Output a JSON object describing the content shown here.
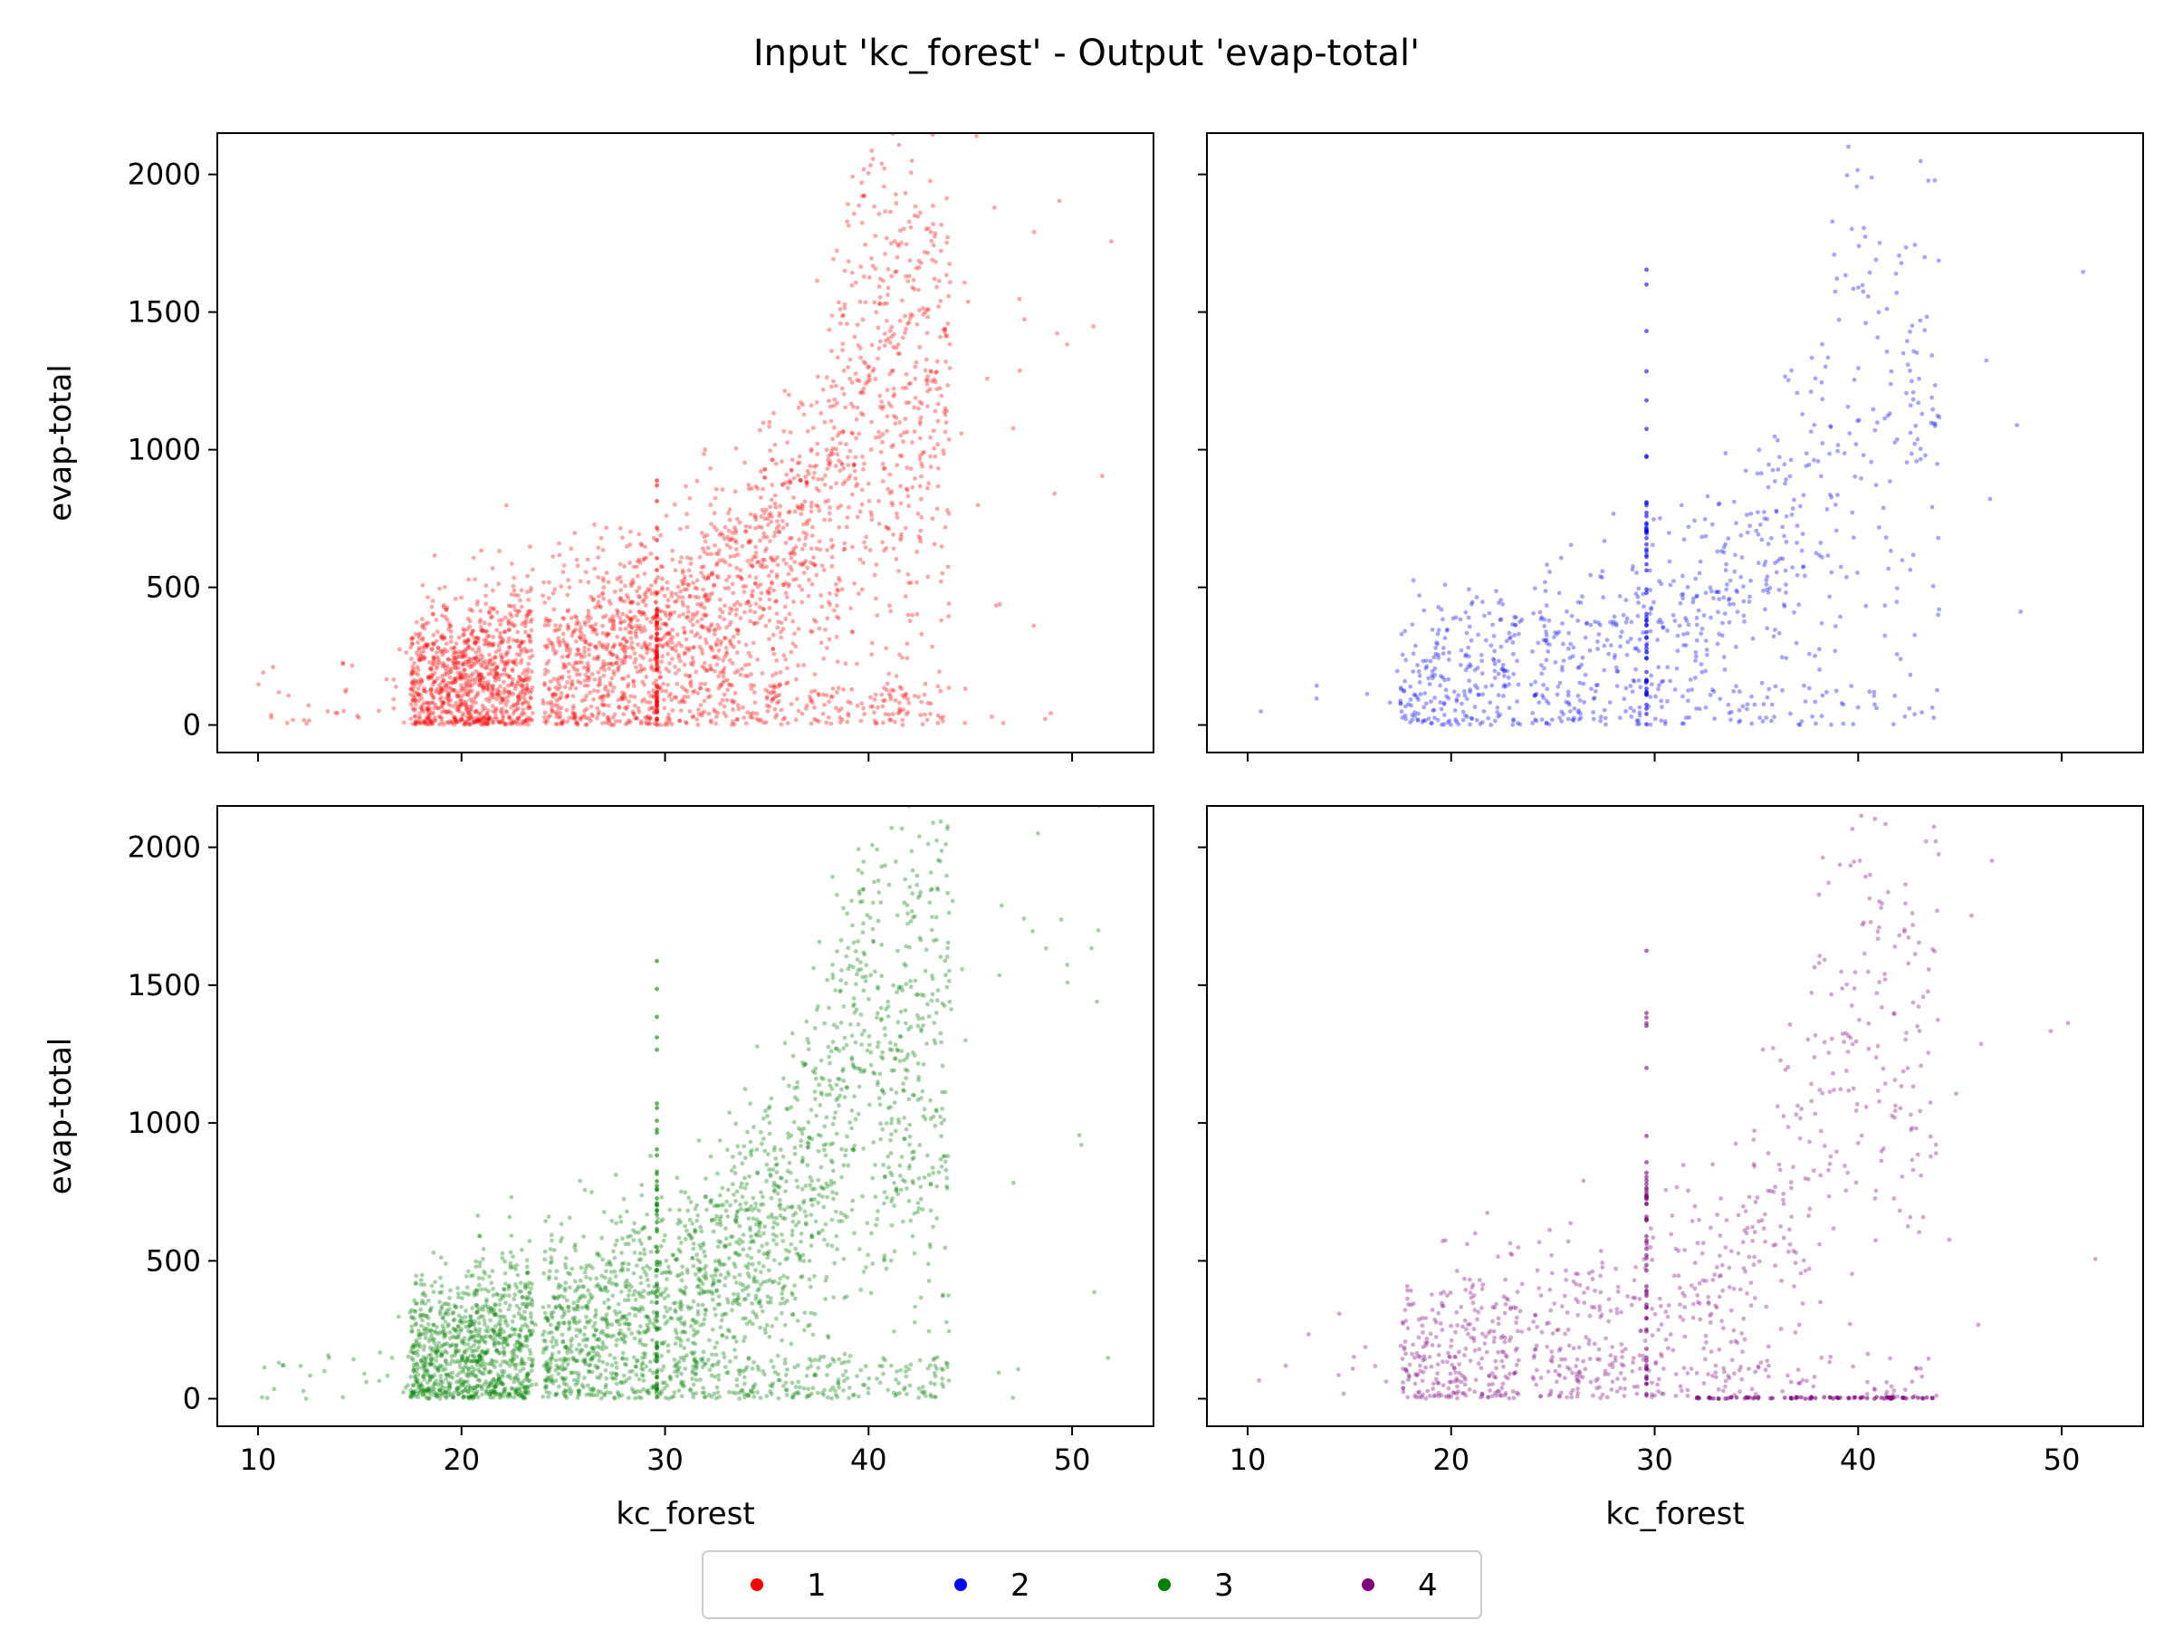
{
  "chart_data": {
    "type": "scatter",
    "title": "Input 'kc_forest' - Output 'evap-total'",
    "xlabel": "kc_forest",
    "ylabel": "evap-total",
    "xlim": [
      8,
      54
    ],
    "ylim": [
      -100,
      2150
    ],
    "xticks": [
      10,
      20,
      30,
      40,
      50
    ],
    "yticks": [
      0,
      500,
      1000,
      1500,
      2000
    ],
    "grid": false,
    "legend_position": "bottom-center",
    "shared_axes": true,
    "panels": [
      {
        "name": "1",
        "color": "#ff0000",
        "density": 1.0,
        "trend": [
          [
            10,
            50
          ],
          [
            17.5,
            160
          ],
          [
            20,
            180
          ],
          [
            25,
            250
          ],
          [
            30,
            320
          ],
          [
            33,
            430
          ],
          [
            36,
            600
          ],
          [
            38,
            850
          ],
          [
            40,
            1250
          ],
          [
            42,
            1150
          ],
          [
            46,
            1300
          ],
          [
            50,
            1650
          ]
        ],
        "vertical_line": {
          "x": 29.6,
          "y_range": [
            0,
            900
          ]
        }
      },
      {
        "name": "2",
        "color": "#0000ff",
        "density": 0.3,
        "trend": [
          [
            10,
            50
          ],
          [
            17.5,
            150
          ],
          [
            20,
            170
          ],
          [
            25,
            240
          ],
          [
            30,
            310
          ],
          [
            33,
            420
          ],
          [
            36,
            580
          ],
          [
            38,
            850
          ],
          [
            40,
            1250
          ],
          [
            42,
            1150
          ],
          [
            46,
            1350
          ],
          [
            51,
            1850
          ]
        ],
        "vertical_line": {
          "x": 29.6,
          "y_range": [
            0,
            1700
          ]
        }
      },
      {
        "name": "3",
        "color": "#008000",
        "density": 1.0,
        "trend": [
          [
            10,
            50
          ],
          [
            17.5,
            170
          ],
          [
            20,
            190
          ],
          [
            25,
            250
          ],
          [
            30,
            330
          ],
          [
            33,
            440
          ],
          [
            36,
            620
          ],
          [
            38,
            900
          ],
          [
            40,
            1450
          ],
          [
            42,
            1200
          ],
          [
            46,
            1650
          ],
          [
            50,
            1850
          ]
        ],
        "vertical_line": {
          "x": 29.6,
          "y_range": [
            0,
            1650
          ]
        }
      },
      {
        "name": "4",
        "color": "#800080",
        "density": 0.3,
        "trend": [
          [
            12,
            80
          ],
          [
            17.5,
            150
          ],
          [
            20,
            170
          ],
          [
            25,
            240
          ],
          [
            30,
            320
          ],
          [
            33,
            430
          ],
          [
            36,
            600
          ],
          [
            38,
            900
          ],
          [
            40,
            1400
          ],
          [
            42,
            1150
          ],
          [
            46,
            1500
          ],
          [
            51,
            1850
          ]
        ],
        "vertical_line": {
          "x": 29.6,
          "y_range": [
            0,
            1650
          ]
        },
        "zero_band": {
          "x_range": [
            32,
            44
          ],
          "y": 0
        }
      }
    ],
    "legend": [
      {
        "label": "1",
        "color": "#ff0000"
      },
      {
        "label": "2",
        "color": "#0000ff"
      },
      {
        "label": "3",
        "color": "#008000"
      },
      {
        "label": "4",
        "color": "#800080"
      }
    ]
  }
}
